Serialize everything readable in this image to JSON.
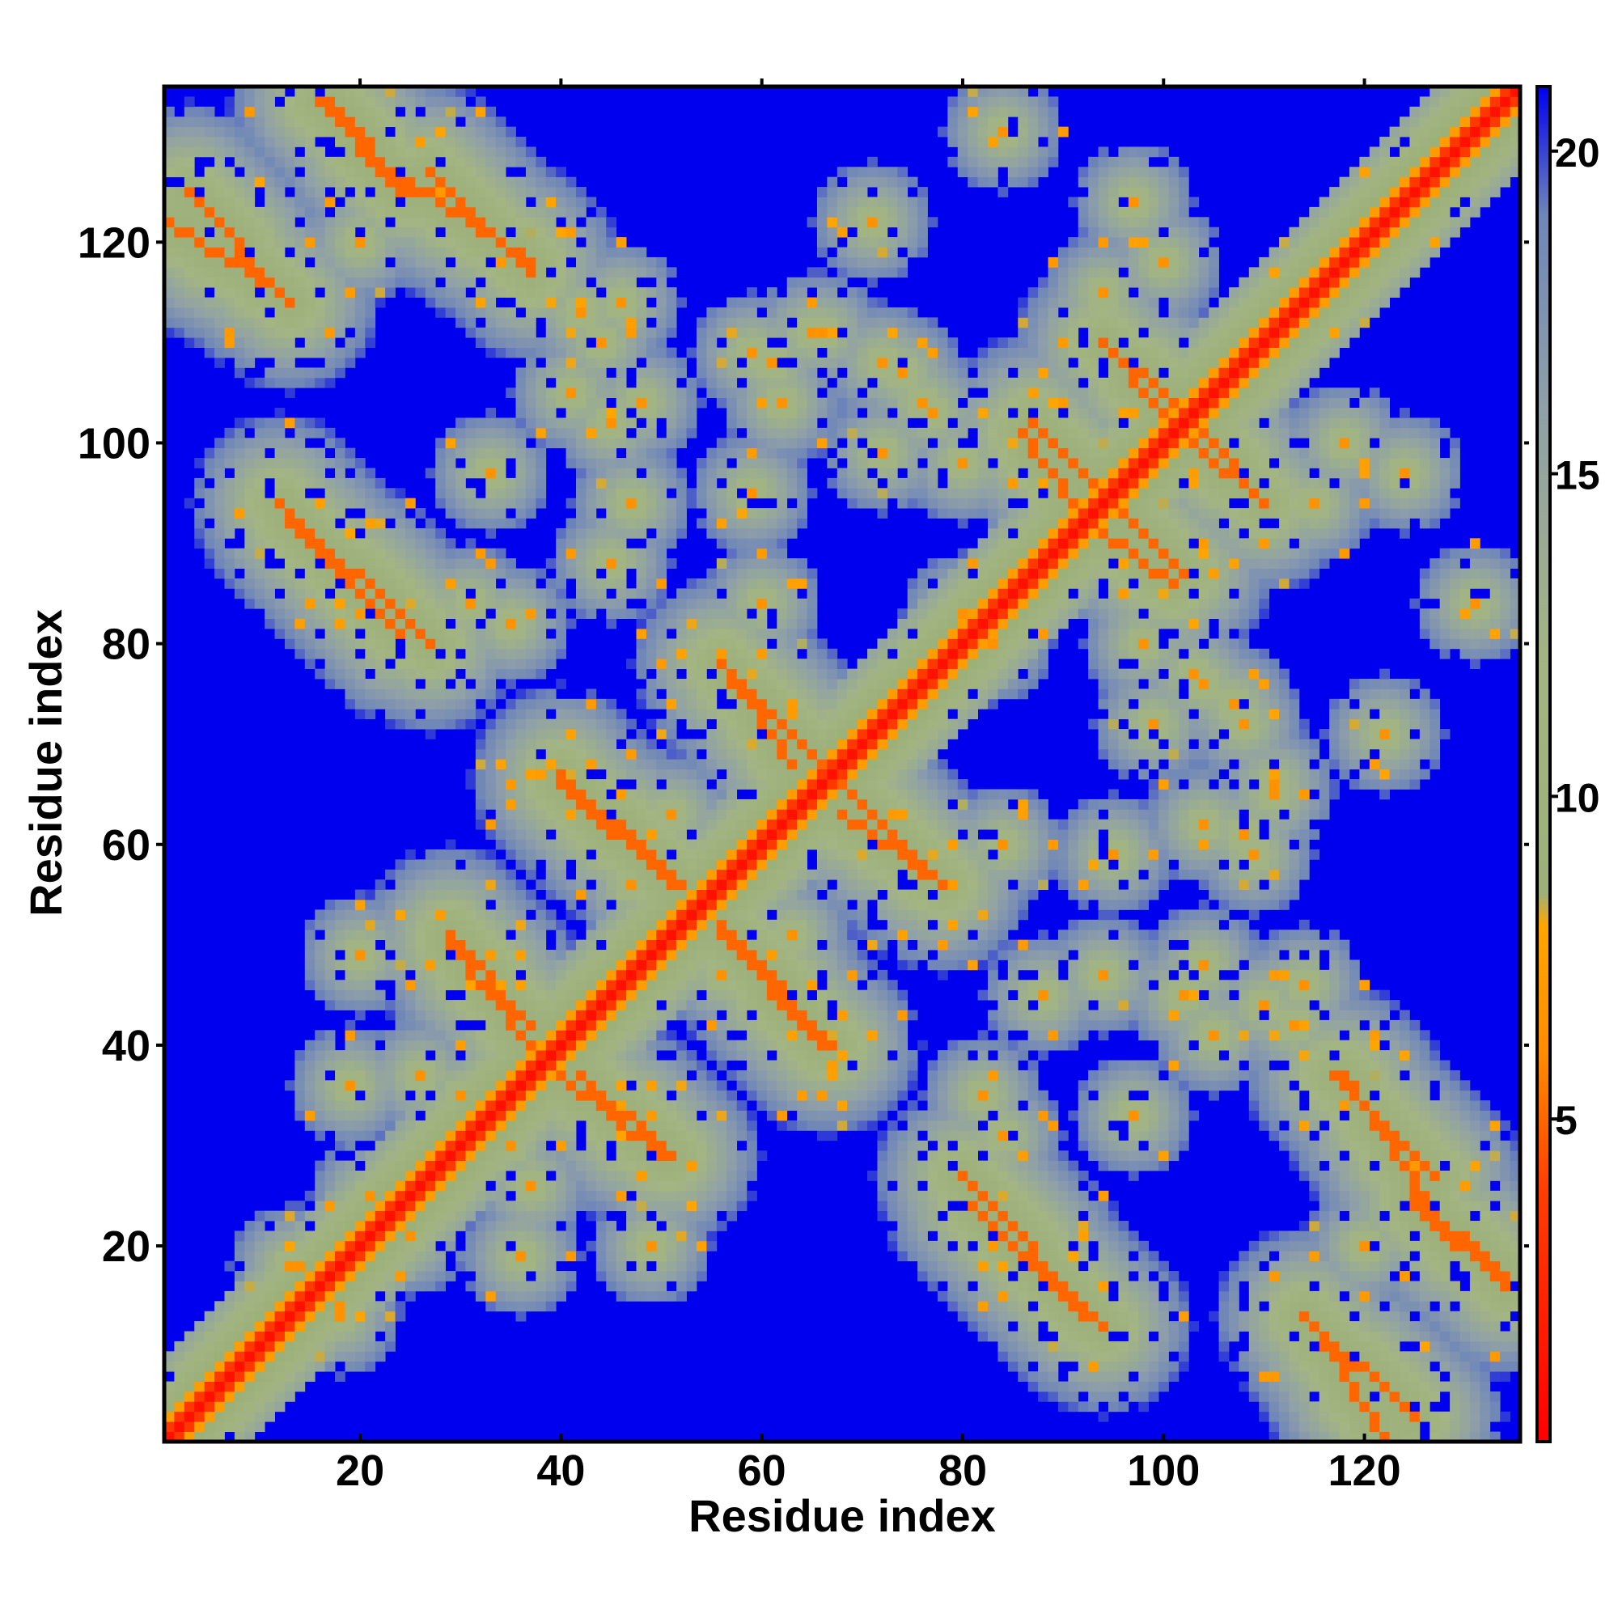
{
  "chart_data": {
    "type": "heatmap",
    "title": "",
    "xlabel": "Residue index",
    "ylabel": "Residue index",
    "xlim": [
      1,
      135
    ],
    "ylim": [
      1,
      135
    ],
    "x_ticks": [
      20,
      40,
      60,
      80,
      100,
      120
    ],
    "y_ticks": [
      20,
      40,
      60,
      80,
      100,
      120
    ],
    "x_tick_labels": [
      "20",
      "40",
      "60",
      "80",
      "100",
      "120"
    ],
    "y_tick_labels": [
      "20",
      "40",
      "60",
      "80",
      "100",
      "120"
    ],
    "colorbar": {
      "range": [
        0,
        21
      ],
      "ticks": [
        5,
        10,
        15,
        20
      ],
      "tick_labels": [
        "5",
        "10",
        "15",
        "20"
      ],
      "stops": [
        {
          "value": 0,
          "color": "#ff0000"
        },
        {
          "value": 4,
          "color": "#ff4000"
        },
        {
          "value": 6,
          "color": "#ff8c00"
        },
        {
          "value": 8,
          "color": "#ffa500"
        },
        {
          "value": 8.5,
          "color": "#9cb07a"
        },
        {
          "value": 12,
          "color": "#a3b582"
        },
        {
          "value": 16,
          "color": "#8fa0a8"
        },
        {
          "value": 19,
          "color": "#6f86b8"
        },
        {
          "value": 21,
          "color": "#0000ee"
        }
      ]
    },
    "grid": false,
    "legend": "colorbar-right",
    "contacts": {
      "diagonal": true,
      "helix_spacing": 4,
      "strand_pairs": [
        {
          "start": [
            1,
            122
          ],
          "end": [
            12,
            115
          ],
          "orientation": "antiparallel"
        },
        {
          "start": [
            16,
            134
          ],
          "end": [
            24,
            125
          ],
          "orientation": "antiparallel"
        },
        {
          "start": [
            27,
            127
          ],
          "end": [
            37,
            117
          ],
          "orientation": "antiparallel"
        },
        {
          "start": [
            12,
            94
          ],
          "end": [
            27,
            80
          ],
          "orientation": "antiparallel"
        },
        {
          "start": [
            29,
            51
          ],
          "end": [
            37,
            42
          ],
          "orientation": "antiparallel"
        },
        {
          "start": [
            40,
            67
          ],
          "end": [
            52,
            56
          ],
          "orientation": "antiparallel"
        },
        {
          "start": [
            56,
            78
          ],
          "end": [
            63,
            68
          ],
          "orientation": "antiparallel"
        },
        {
          "start": [
            40,
            37
          ],
          "end": [
            50,
            29
          ],
          "orientation": "antiparallel"
        },
        {
          "start": [
            56,
            51
          ],
          "end": [
            66,
            40
          ],
          "orientation": "antiparallel"
        },
        {
          "start": [
            68,
            66
          ],
          "end": [
            77,
            57
          ],
          "orientation": "antiparallel"
        },
        {
          "start": [
            87,
            102
          ],
          "end": [
            97,
            92
          ],
          "orientation": "antiparallel"
        },
        {
          "start": [
            94,
            110
          ],
          "end": [
            100,
            103
          ],
          "orientation": "antiparallel"
        },
        {
          "start": [
            94,
            91
          ],
          "end": [
            101,
            86
          ],
          "orientation": "antiparallel"
        },
        {
          "start": [
            103,
            102
          ],
          "end": [
            110,
            94
          ],
          "orientation": "antiparallel"
        },
        {
          "start": [
            81,
            24
          ],
          "end": [
            92,
            13
          ],
          "orientation": "antiparallel"
        },
        {
          "start": [
            114,
            13
          ],
          "end": [
            125,
            3
          ],
          "orientation": "antiparallel"
        },
        {
          "start": [
            118,
            37
          ],
          "end": [
            126,
            25
          ],
          "orientation": "antiparallel"
        },
        {
          "start": [
            125,
            25
          ],
          "end": [
            134,
            17
          ],
          "orientation": "antiparallel"
        }
      ],
      "sparse_contacts": [
        [
          20,
          120
        ],
        [
          46,
          114
        ],
        [
          66,
          111
        ],
        [
          74,
          107
        ],
        [
          77,
          103
        ],
        [
          60,
          84
        ],
        [
          47,
          94
        ],
        [
          45,
          102
        ],
        [
          41,
          105
        ],
        [
          61,
          108
        ],
        [
          62,
          104
        ],
        [
          72,
          99
        ],
        [
          83,
          80
        ],
        [
          79,
          79
        ],
        [
          98,
          80
        ],
        [
          104,
          76
        ],
        [
          108,
          72
        ],
        [
          111,
          65
        ],
        [
          109,
          59
        ],
        [
          95,
          59
        ],
        [
          104,
          48
        ],
        [
          110,
          44
        ],
        [
          113,
          42
        ],
        [
          31,
          84
        ],
        [
          33,
          97
        ],
        [
          14,
          18
        ],
        [
          18,
          13
        ],
        [
          19,
          36
        ],
        [
          25,
          21
        ],
        [
          30,
          35
        ],
        [
          37,
          26
        ],
        [
          49,
          20
        ],
        [
          56,
          47
        ],
        [
          63,
          51
        ],
        [
          88,
          45
        ],
        [
          82,
          35
        ],
        [
          97,
          124
        ],
        [
          118,
          100
        ],
        [
          115,
          94
        ],
        [
          122,
          71
        ],
        [
          131,
          84
        ]
      ]
    }
  }
}
